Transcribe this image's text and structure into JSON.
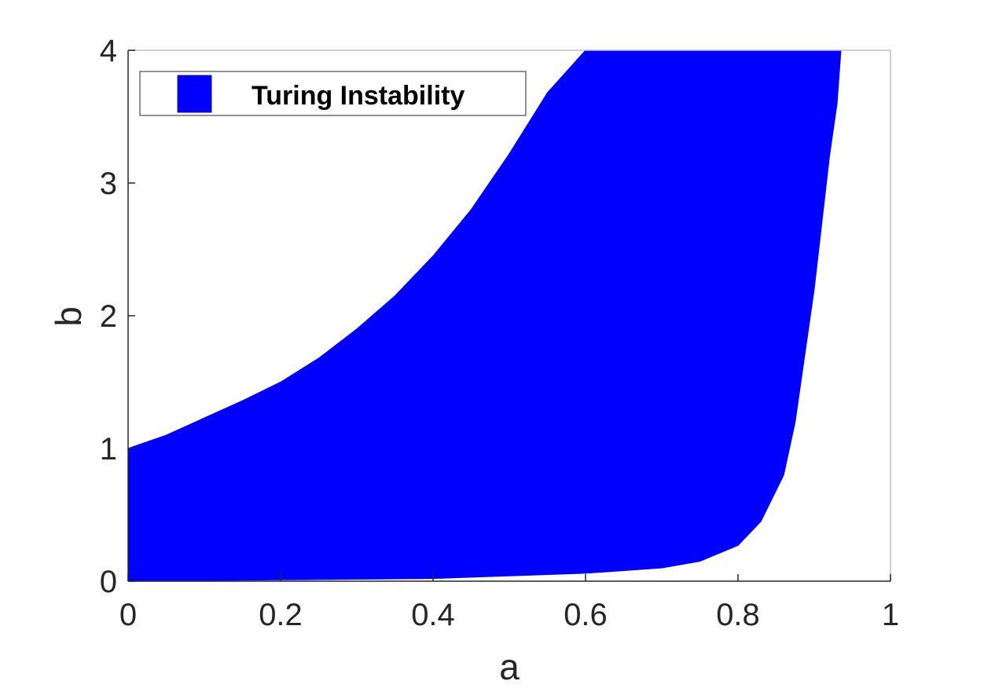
{
  "chart_data": {
    "type": "area",
    "title": "",
    "xlabel": "a",
    "ylabel": "b",
    "xlim": [
      0,
      1
    ],
    "ylim": [
      0,
      4
    ],
    "x_ticks": [
      "0",
      "0.2",
      "0.4",
      "0.6",
      "0.8",
      "1"
    ],
    "y_ticks": [
      "0",
      "1",
      "2",
      "3",
      "4"
    ],
    "grid": false,
    "legend": {
      "position": "top-left",
      "entries": [
        "Turing Instability"
      ]
    },
    "series": [
      {
        "name": "Turing Instability",
        "color": "#0000ff",
        "upper_boundary": {
          "a": [
            0.0,
            0.05,
            0.1,
            0.15,
            0.2,
            0.25,
            0.3,
            0.35,
            0.4,
            0.45,
            0.5,
            0.55,
            0.6,
            0.935
          ],
          "b": [
            1.0,
            1.1,
            1.23,
            1.36,
            1.5,
            1.68,
            1.9,
            2.15,
            2.45,
            2.8,
            3.22,
            3.68,
            4.0,
            4.0
          ]
        },
        "lower_boundary": {
          "a": [
            0.0,
            0.2,
            0.4,
            0.5,
            0.6,
            0.7,
            0.75,
            0.8,
            0.83,
            0.86,
            0.875,
            0.89,
            0.9,
            0.91,
            0.92,
            0.93,
            0.935
          ],
          "b": [
            0.0,
            0.01,
            0.02,
            0.04,
            0.06,
            0.1,
            0.15,
            0.27,
            0.45,
            0.8,
            1.2,
            1.8,
            2.2,
            2.7,
            3.2,
            3.6,
            4.0
          ]
        }
      }
    ]
  },
  "colors": {
    "fill": "#0000ff",
    "axis": "#262626",
    "frame": "#bfbfbf"
  }
}
